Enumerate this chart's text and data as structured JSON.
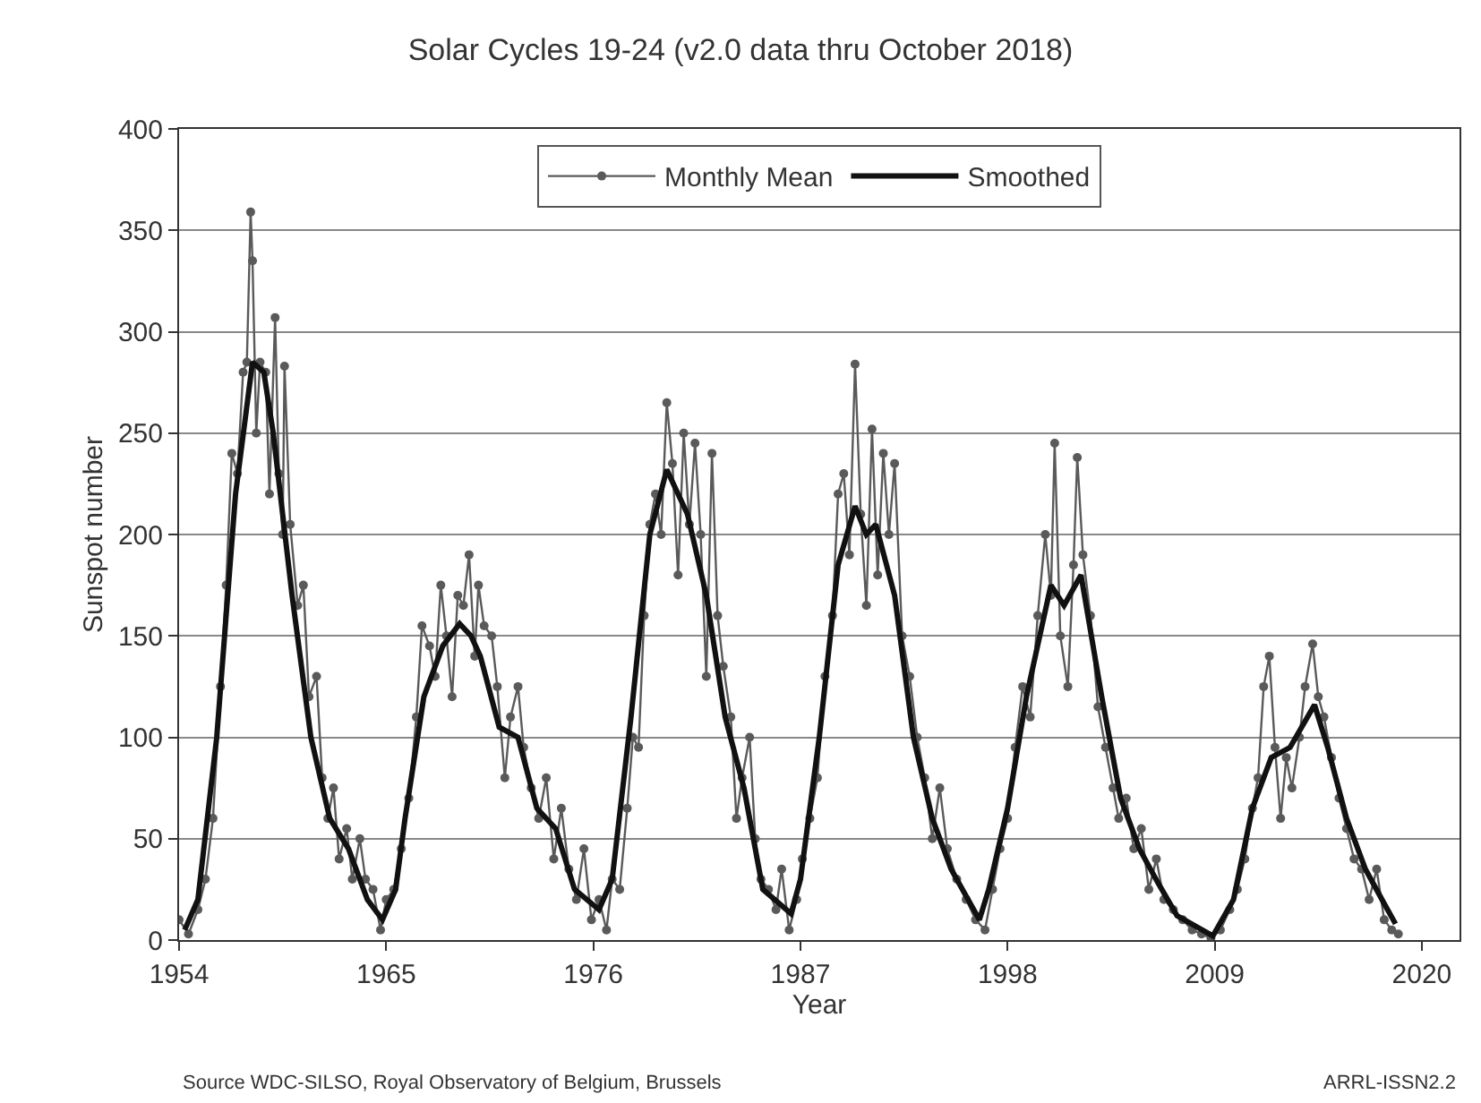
{
  "chart_data": {
    "type": "line",
    "title": "Solar Cycles 19-24 (v2.0 data thru October 2018)",
    "xlabel": "Year",
    "ylabel": "Sunspot number",
    "xlim": [
      1954,
      2022
    ],
    "xticks": [
      1954,
      1965,
      1976,
      1987,
      1998,
      2009,
      2020
    ],
    "ylim": [
      0,
      400
    ],
    "yticks": [
      0,
      50,
      100,
      150,
      200,
      250,
      300,
      350,
      400
    ],
    "grid": "y",
    "legend": "top",
    "annotations": [
      "Source WDC-SILSO, Royal Observatory of Belgium, Brussels",
      "ARRL-ISSN2.2"
    ],
    "series": [
      {
        "name": "Monthly Mean",
        "color": "#5a5a5a",
        "marker": "circle",
        "line_style": "solid",
        "x": [
          1954.0,
          1954.5,
          1955.0,
          1955.4,
          1955.8,
          1956.2,
          1956.5,
          1956.8,
          1957.1,
          1957.4,
          1957.6,
          1957.8,
          1957.9,
          1958.1,
          1958.3,
          1958.6,
          1958.8,
          1959.1,
          1959.3,
          1959.5,
          1959.6,
          1959.9,
          1960.3,
          1960.6,
          1960.9,
          1961.3,
          1961.6,
          1961.9,
          1962.2,
          1962.5,
          1962.9,
          1963.2,
          1963.6,
          1963.9,
          1964.3,
          1964.7,
          1965.0,
          1965.4,
          1965.8,
          1966.2,
          1966.6,
          1966.9,
          1967.3,
          1967.6,
          1967.9,
          1968.2,
          1968.5,
          1968.8,
          1969.1,
          1969.4,
          1969.7,
          1969.9,
          1970.2,
          1970.6,
          1970.9,
          1971.3,
          1971.6,
          1972.0,
          1972.3,
          1972.7,
          1973.1,
          1973.5,
          1973.9,
          1974.3,
          1974.7,
          1975.1,
          1975.5,
          1975.9,
          1976.3,
          1976.7,
          1977.0,
          1977.4,
          1977.8,
          1978.1,
          1978.4,
          1978.7,
          1979.0,
          1979.3,
          1979.6,
          1979.9,
          1980.2,
          1980.5,
          1980.8,
          1981.1,
          1981.4,
          1981.7,
          1982.0,
          1982.3,
          1982.6,
          1982.9,
          1983.3,
          1983.6,
          1983.9,
          1984.3,
          1984.6,
          1984.9,
          1985.3,
          1985.7,
          1986.0,
          1986.4,
          1986.8,
          1987.1,
          1987.5,
          1987.9,
          1988.3,
          1988.7,
          1989.0,
          1989.3,
          1989.6,
          1989.9,
          1990.2,
          1990.5,
          1990.8,
          1991.1,
          1991.4,
          1991.7,
          1992.0,
          1992.4,
          1992.8,
          1993.2,
          1993.6,
          1994.0,
          1994.4,
          1994.8,
          1995.3,
          1995.8,
          1996.3,
          1996.8,
          1997.2,
          1997.6,
          1998.0,
          1998.4,
          1998.8,
          1999.2,
          1999.6,
          2000.0,
          2000.3,
          2000.5,
          2000.8,
          2001.2,
          2001.5,
          2001.7,
          2002.0,
          2002.4,
          2002.8,
          2003.2,
          2003.6,
          2003.9,
          2004.3,
          2004.7,
          2005.1,
          2005.5,
          2005.9,
          2006.3,
          2006.8,
          2007.3,
          2007.8,
          2008.3,
          2008.8,
          2009.3,
          2009.8,
          2010.2,
          2010.6,
          2011.0,
          2011.3,
          2011.6,
          2011.9,
          2012.2,
          2012.5,
          2012.8,
          2013.1,
          2013.5,
          2013.8,
          2014.2,
          2014.5,
          2014.8,
          2015.2,
          2015.6,
          2016.0,
          2016.4,
          2016.8,
          2017.2,
          2017.6,
          2018.0,
          2018.4,
          2018.75
        ],
        "values": [
          10,
          3,
          15,
          30,
          60,
          125,
          175,
          240,
          230,
          280,
          285,
          359,
          335,
          250,
          285,
          280,
          220,
          307,
          230,
          200,
          283,
          205,
          165,
          175,
          120,
          130,
          80,
          60,
          75,
          40,
          55,
          30,
          50,
          30,
          25,
          5,
          20,
          25,
          45,
          70,
          110,
          155,
          145,
          130,
          175,
          150,
          120,
          170,
          165,
          190,
          140,
          175,
          155,
          150,
          125,
          80,
          110,
          125,
          95,
          75,
          60,
          80,
          40,
          65,
          35,
          20,
          45,
          10,
          20,
          5,
          30,
          25,
          65,
          100,
          95,
          160,
          205,
          220,
          200,
          265,
          235,
          180,
          250,
          205,
          245,
          200,
          130,
          240,
          160,
          135,
          110,
          60,
          80,
          100,
          50,
          30,
          25,
          15,
          35,
          5,
          20,
          40,
          60,
          80,
          130,
          160,
          220,
          230,
          190,
          284,
          210,
          165,
          252,
          180,
          240,
          200,
          235,
          150,
          130,
          100,
          80,
          50,
          75,
          45,
          30,
          20,
          10,
          5,
          25,
          45,
          60,
          95,
          125,
          110,
          160,
          200,
          170,
          245,
          150,
          125,
          185,
          238,
          190,
          160,
          115,
          95,
          75,
          60,
          70,
          45,
          55,
          25,
          40,
          20,
          15,
          10,
          5,
          3,
          1,
          5,
          15,
          25,
          40,
          65,
          80,
          125,
          140,
          95,
          60,
          90,
          75,
          100,
          125,
          146,
          120,
          110,
          90,
          70,
          55,
          40,
          35,
          20,
          35,
          10,
          5,
          3
        ]
      },
      {
        "name": "Smoothed",
        "color": "#111111",
        "marker": "none",
        "line_style": "solid",
        "x": [
          1954.3,
          1955,
          1956,
          1957,
          1957.9,
          1958.5,
          1959,
          1960,
          1961,
          1962,
          1963,
          1964,
          1964.8,
          1965.5,
          1966,
          1967,
          1968,
          1968.9,
          1969.5,
          1970,
          1971,
          1972,
          1973,
          1974,
          1975,
          1976.3,
          1977,
          1978,
          1979,
          1979.9,
          1980.5,
          1981,
          1982,
          1983,
          1984,
          1985,
          1986.5,
          1987,
          1988,
          1989,
          1989.9,
          1990.5,
          1991,
          1992,
          1993,
          1994,
          1995,
          1996.5,
          1997,
          1998,
          1999,
          2000.3,
          2001,
          2001.9,
          2003,
          2004,
          2005,
          2006,
          2007,
          2008.9,
          2010,
          2011,
          2012,
          2013,
          2014.3,
          2015,
          2016,
          2017,
          2018,
          2018.6
        ],
        "values": [
          5,
          20,
          100,
          220,
          285,
          280,
          250,
          170,
          100,
          60,
          45,
          20,
          10,
          25,
          60,
          120,
          145,
          156,
          150,
          140,
          105,
          100,
          65,
          55,
          25,
          15,
          30,
          110,
          200,
          232,
          220,
          210,
          170,
          110,
          75,
          25,
          13,
          30,
          100,
          185,
          214,
          200,
          205,
          170,
          100,
          60,
          35,
          10,
          25,
          65,
          120,
          175,
          165,
          180,
          120,
          70,
          45,
          28,
          12,
          2,
          20,
          65,
          90,
          95,
          116,
          95,
          60,
          35,
          18,
          8
        ]
      }
    ]
  }
}
